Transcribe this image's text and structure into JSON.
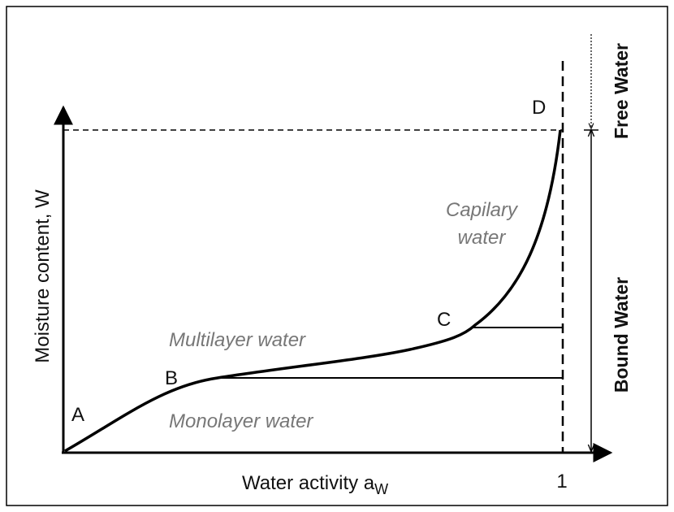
{
  "points": {
    "a": "A",
    "b": "B",
    "c": "C",
    "d": "D"
  },
  "regions": {
    "capillary": [
      "Capilary",
      "water"
    ],
    "multilayer": "Multilayer water",
    "monolayer": "Monolayer water"
  },
  "y_axis": "Moisture content, W",
  "x_axis": {
    "text": "Water activity a",
    "subscript": "W"
  },
  "x_end_label": "1",
  "side_labels": {
    "free": "Free Water",
    "bound": "Bound Water"
  }
}
